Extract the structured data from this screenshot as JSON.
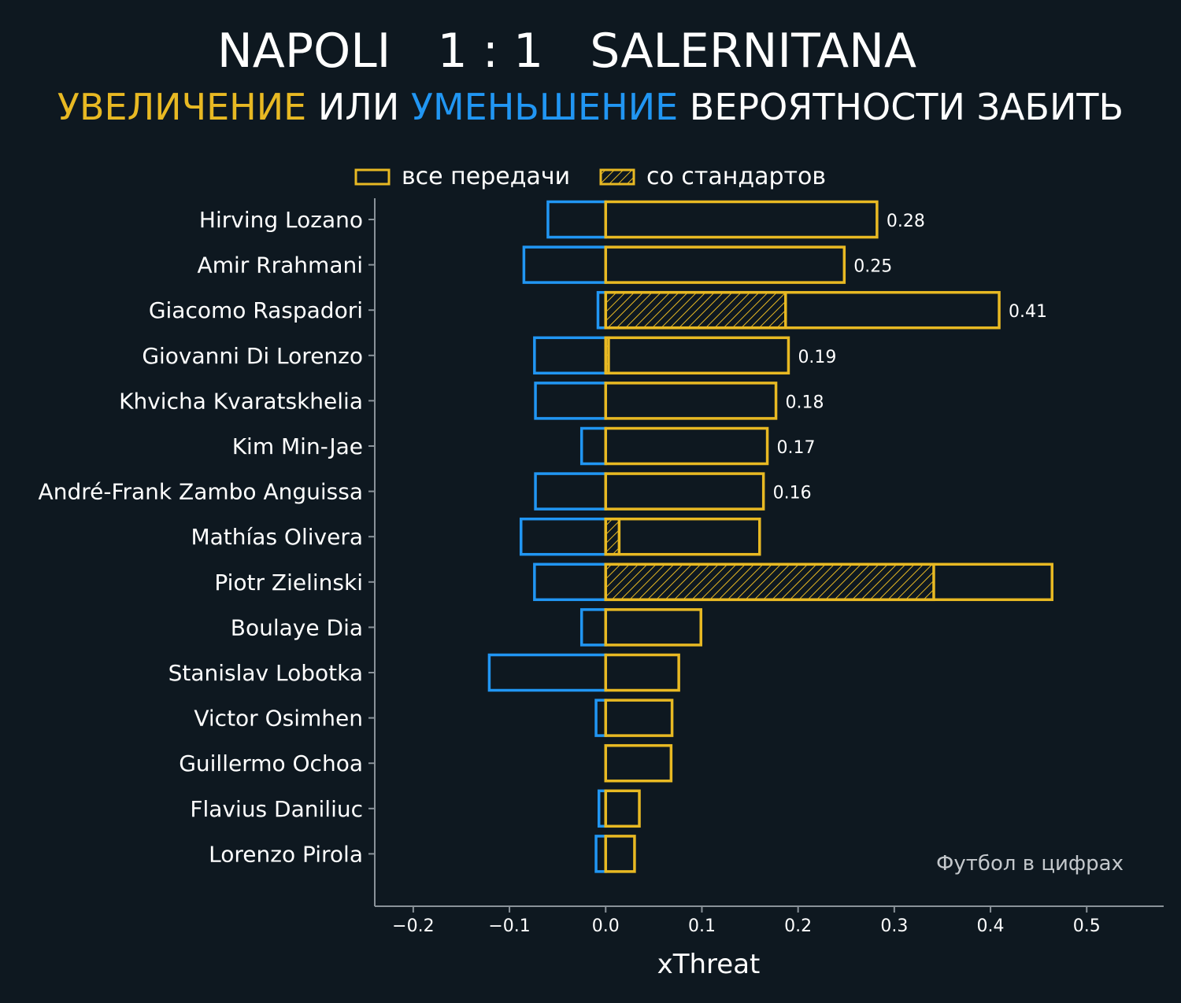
{
  "colors": {
    "background": "#0e1820",
    "increase": "#e8b923",
    "decrease": "#2196f3",
    "axis": "#8a9299",
    "text": "#ffffff"
  },
  "header": {
    "home": "NAPOLI",
    "score": "1 : 1",
    "away": "SALERNITANA",
    "subtitle_increase": "УВЕЛИЧЕНИЕ",
    "subtitle_or": "ИЛИ",
    "subtitle_decrease": "УМЕНЬШЕНИЕ",
    "subtitle_rest": "ВЕРОЯТНОСТИ ЗАБИТЬ"
  },
  "watermark": "Футбол в цифрах",
  "chart_data": {
    "type": "bar",
    "orientation": "horizontal",
    "xlabel": "xThreat",
    "xlim": [
      -0.24,
      0.58
    ],
    "xticks": [
      -0.2,
      -0.1,
      0.0,
      0.1,
      0.2,
      0.3,
      0.4,
      0.5
    ],
    "xtick_labels": [
      "−0.2",
      "−0.1",
      "0.0",
      "0.1",
      "0.2",
      "0.3",
      "0.4",
      "0.5"
    ],
    "legend": [
      "все передачи",
      "со стандартов"
    ],
    "legend_position": "top-center",
    "categories": [
      "Hirving Lozano",
      "Amir Rrahmani",
      "Giacomo Raspadori",
      "Giovanni Di Lorenzo",
      "Khvicha Kvaratskhelia",
      "Kim Min-Jae",
      "André-Frank Zambo Anguissa",
      "Mathías Olivera",
      "Piotr Zielinski",
      "Boulaye Dia",
      "Stanislav Lobotka",
      "Victor Osimhen",
      "Guillermo Ochoa",
      "Flavius Daniliuc",
      "Lorenzo Pirola"
    ],
    "series": [
      {
        "name": "все передачи (увеличение)",
        "values": [
          0.282,
          0.248,
          0.409,
          0.19,
          0.177,
          0.168,
          0.164,
          0.16,
          0.464,
          0.099,
          0.076,
          0.069,
          0.068,
          0.035,
          0.03
        ]
      },
      {
        "name": "все передачи (уменьшение)",
        "values": [
          -0.06,
          -0.085,
          -0.008,
          -0.074,
          -0.073,
          -0.025,
          -0.073,
          -0.088,
          -0.074,
          -0.025,
          -0.121,
          -0.01,
          0.0,
          -0.007,
          -0.01
        ]
      },
      {
        "name": "со стандартов",
        "values": [
          0,
          0,
          0.187,
          0.003,
          0,
          0,
          0,
          0.014,
          0.341,
          0,
          0,
          0,
          0,
          0,
          0
        ]
      }
    ],
    "value_labels": [
      "0.28",
      "0.25",
      "0.41",
      "0.19",
      "0.18",
      "0.17",
      "0.16",
      "",
      "",
      "",
      "",
      "",
      "",
      "",
      ""
    ]
  }
}
